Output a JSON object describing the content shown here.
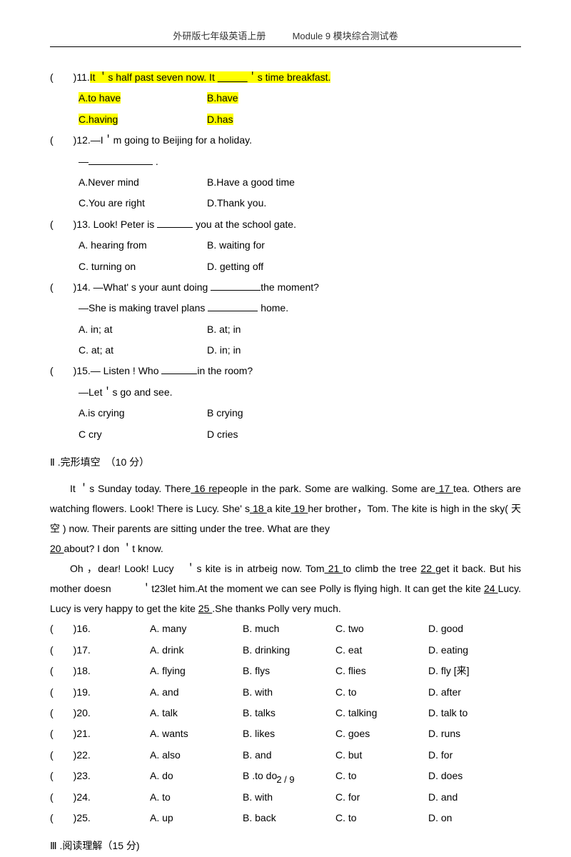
{
  "header": {
    "left": "外研版七年级英语上册",
    "right": "Module 9 模块综合测试卷"
  },
  "q11": {
    "prefix": "(　　)11.",
    "sentence_a": "It ＇s half past seven now. It ",
    "sentence_b": "＇s time",
    "sentence_c": " breakfast.",
    "A": "A.to have",
    "B": "B.have",
    "C": "C.having",
    "D": "D.has"
  },
  "q12": {
    "prefix": "(　　)12.",
    "line1": "—I＇m going to Beijing for a holiday.",
    "line2_dash": "—",
    "line2_end": " .",
    "A": "A.Never mind",
    "B": "B.Have a good time",
    "C": "C.You are right",
    "D": "D.Thank you."
  },
  "q13": {
    "prefix": "(　　)13.",
    "line": " Look! Peter is ",
    "line_end": " you at the school gate.",
    "A": "A. hearing from",
    "B": "B. waiting for",
    "C": "C. turning on",
    "D": "D. getting off"
  },
  "q14": {
    "prefix": "(　　)14.",
    "line1a": " —What' s your aunt doing ",
    "line1b": "the moment?",
    "line2a": "—She is making travel plans ",
    "line2b": " home.",
    "A": "A. in; at",
    "B": "B. at; in",
    "C": "C. at; at",
    "D": "D. in; in"
  },
  "q15": {
    "prefix": "(　　)15.",
    "line1a": "— Listen ! Who ",
    "line1b": "in the room?",
    "line2": "—Let＇s go and see.",
    "A": "A.is crying",
    "B": "B crying",
    "C": "C cry",
    "D": "D cries"
  },
  "section2_title": "Ⅱ .完形填空　（10 分）",
  "passage": {
    "p1a": "It ＇s Sunday today. There",
    "b16": "  16  re",
    "p1b": "people in the park. Some are walking. Some are",
    "b17": "  17  ",
    "p1c": "tea. Others are watching flowers. Look! There is Lucy. She' s",
    "b18": "  18  ",
    "p1d": "a kite",
    "b19": "  19  ",
    "p1e": "her brother，Tom. The kite is high in the sky( 天空 ) now. Their parents are sitting under the tree. What are they",
    "b20": "     20    ",
    "p1f": "about? I don ＇t know.",
    "p2a": "Oh ，dear! Look! Lucy　＇s kite is in atrbeig now. Tom",
    "b21": "  21  ",
    "p2b": "to climb the tree ",
    "b22": "22   ",
    "p2c": "get it back. But his mother doesn　　　＇t23let him.At the moment we can see Polly is flying high. It can get the kite ",
    "b24": "  24   ",
    "p2d": "Lucy. Lucy is very happy to get the kite ",
    "b25": "25    ",
    "p2e": ".She thanks Polly very much."
  },
  "cloze": [
    {
      "n": "(　　)16.",
      "A": "A. many",
      "B": "B. much",
      "C": "C. two",
      "D": "D. good"
    },
    {
      "n": "(　　)17.",
      "A": "A. drink",
      "B": "B. drinking",
      "C": "C. eat",
      "D": "D. eating"
    },
    {
      "n": "(　　)18.",
      "A": "A. flying",
      "B": "B. flys",
      "C": "C. flies",
      "D": "D. fly [来]"
    },
    {
      "n": "(　　)19.",
      "A": "A. and",
      "B": "B. with",
      "C": "C. to",
      "D": "D. after"
    },
    {
      "n": "(　　)20.",
      "A": "A. talk",
      "B": "B. talks",
      "C": "C. talking",
      "D": "D. talk to"
    },
    {
      "n": "(　　)21.",
      "A": "A. wants",
      "B": "B. likes",
      "C": "C. goes",
      "D": "D. runs"
    },
    {
      "n": "(　　)22.",
      "A": "A. also",
      "B": "B. and",
      "C": "C. but",
      "D": "D. for"
    },
    {
      "n": "(　　)23.",
      "A": "A.  do",
      "B": "B .to do",
      "C": "C. to",
      "D": "D. does"
    },
    {
      "n": "(　　)24.",
      "A": "A. to",
      "B": "B. with",
      "C": "C. for",
      "D": "D. and"
    },
    {
      "n": "(　　)25.",
      "A": "A. up",
      "B": "B. back",
      "C": "C. to",
      "D": "D. on"
    }
  ],
  "section3_title": "Ⅲ .阅读理解（15 分)",
  "footer": "2 / 9"
}
